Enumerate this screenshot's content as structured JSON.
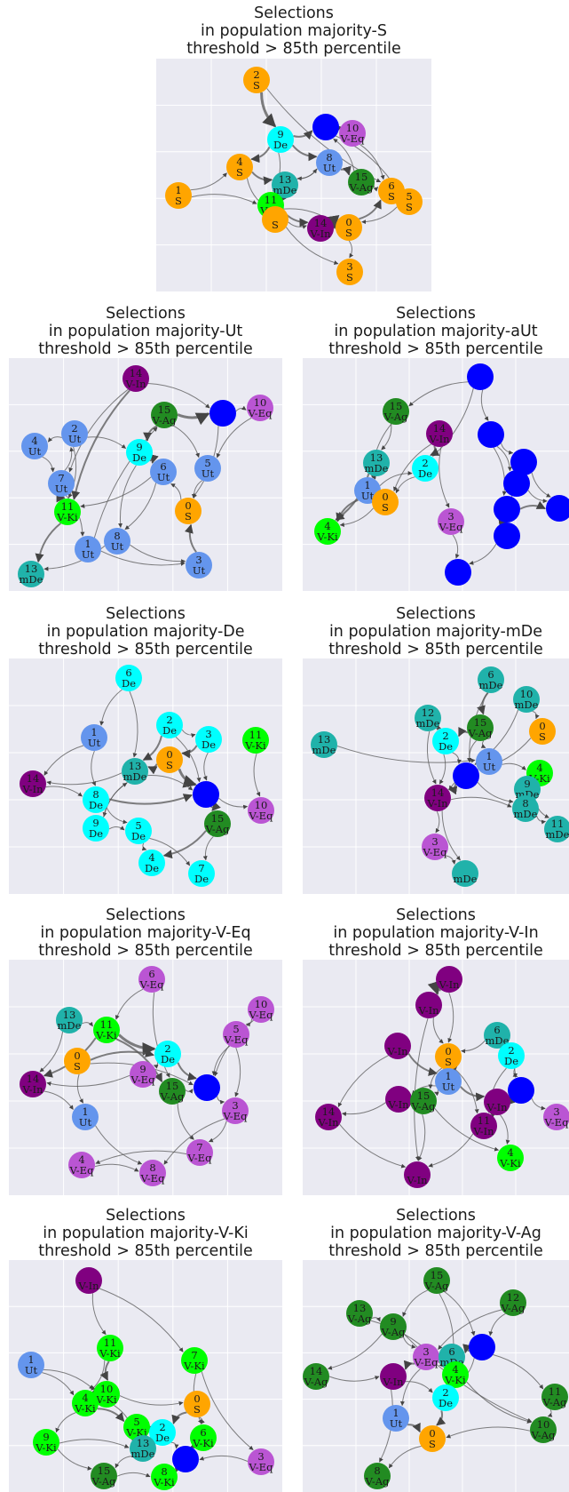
{
  "colors": {
    "S": "#ffa500",
    "Ut": "#6495ed",
    "aUt": "#0000ff",
    "De": "#00ffff",
    "mDe": "#20b2aa",
    "V-Eq": "#ba55d3",
    "V-In": "#800080",
    "V-Ki": "#00ff00",
    "V-Ag": "#228b22",
    "panel_bg": "#eaeaf2",
    "grid": "#ffffff",
    "edge": "#555555"
  },
  "panels": [
    {
      "title": [
        "Selections",
        "in population majority-S",
        "threshold > 85th percentile"
      ],
      "nodes": [
        {
          "id": "2",
          "type": "S",
          "label": "S"
        },
        {
          "id": "",
          "type": "aUt",
          "label": ""
        },
        {
          "id": "10",
          "type": "V-Eq",
          "label": "V-Eq"
        },
        {
          "id": "9",
          "type": "De",
          "label": "De"
        },
        {
          "id": "8",
          "type": "Ut",
          "label": "Ut"
        },
        {
          "id": "4",
          "type": "S",
          "label": "S"
        },
        {
          "id": "13",
          "type": "mDe",
          "label": "mDe"
        },
        {
          "id": "15",
          "type": "V-Ag",
          "label": "V-Ag"
        },
        {
          "id": "6",
          "type": "S",
          "label": "S"
        },
        {
          "id": "5",
          "type": "S",
          "label": "S"
        },
        {
          "id": "1",
          "type": "S",
          "label": "S"
        },
        {
          "id": "11",
          "type": "V-Ki",
          "label": "V-Ki"
        },
        {
          "id": "",
          "type": "S",
          "label": "S"
        },
        {
          "id": "14",
          "type": "V-In",
          "label": "V-In"
        },
        {
          "id": "0",
          "type": "S",
          "label": "S"
        },
        {
          "id": "3",
          "type": "S",
          "label": "S"
        }
      ]
    },
    {
      "title": [
        "Selections",
        "in population majority-Ut",
        "threshold > 85th percentile"
      ],
      "nodes": [
        {
          "id": "14",
          "type": "V-In",
          "label": "V-In"
        },
        {
          "id": "15",
          "type": "V-Ag",
          "label": "V-Ag"
        },
        {
          "id": "",
          "type": "aUt",
          "label": ""
        },
        {
          "id": "10",
          "type": "V-Eq",
          "label": "V-Eq"
        },
        {
          "id": "2",
          "type": "Ut",
          "label": "Ut"
        },
        {
          "id": "4",
          "type": "Ut",
          "label": "Ut"
        },
        {
          "id": "9",
          "type": "De",
          "label": "De"
        },
        {
          "id": "7",
          "type": "Ut",
          "label": "Ut"
        },
        {
          "id": "6",
          "type": "Ut",
          "label": "Ut"
        },
        {
          "id": "5",
          "type": "Ut",
          "label": "Ut"
        },
        {
          "id": "11",
          "type": "V-Ki",
          "label": "V-Ki"
        },
        {
          "id": "0",
          "type": "S",
          "label": "S"
        },
        {
          "id": "8",
          "type": "Ut",
          "label": "Ut"
        },
        {
          "id": "1",
          "type": "Ut",
          "label": "Ut"
        },
        {
          "id": "3",
          "type": "Ut",
          "label": "Ut"
        },
        {
          "id": "13",
          "type": "mDe",
          "label": "mDe"
        }
      ]
    },
    {
      "title": [
        "Selections",
        "in population majority-aUt",
        "threshold > 85th percentile"
      ],
      "nodes": [
        {
          "id": "",
          "type": "aUt",
          "label": ""
        },
        {
          "id": "15",
          "type": "V-Ag",
          "label": "V-Ag"
        },
        {
          "id": "14",
          "type": "V-In",
          "label": "V-In"
        },
        {
          "id": "",
          "type": "aUt",
          "label": ""
        },
        {
          "id": "13",
          "type": "mDe",
          "label": "mDe"
        },
        {
          "id": "2",
          "type": "De",
          "label": "De"
        },
        {
          "id": "",
          "type": "aUt",
          "label": ""
        },
        {
          "id": "",
          "type": "aUt",
          "label": ""
        },
        {
          "id": "1",
          "type": "Ut",
          "label": "Ut"
        },
        {
          "id": "0",
          "type": "S",
          "label": "S"
        },
        {
          "id": "",
          "type": "aUt",
          "label": ""
        },
        {
          "id": "3",
          "type": "V-Eq",
          "label": "V-Eq"
        },
        {
          "id": "",
          "type": "aUt",
          "label": ""
        },
        {
          "id": "4",
          "type": "V-Ki",
          "label": "V-Ki"
        },
        {
          "id": "",
          "type": "aUt",
          "label": ""
        },
        {
          "id": "",
          "type": "aUt",
          "label": ""
        }
      ]
    },
    {
      "title": [
        "Selections",
        "in population majority-De",
        "threshold > 85th percentile"
      ],
      "nodes": [
        {
          "id": "6",
          "type": "De",
          "label": "De"
        },
        {
          "id": "2",
          "type": "De",
          "label": "De"
        },
        {
          "id": "1",
          "type": "Ut",
          "label": "Ut"
        },
        {
          "id": "3",
          "type": "De",
          "label": "De"
        },
        {
          "id": "11",
          "type": "V-Ki",
          "label": "V-Ki"
        },
        {
          "id": "0",
          "type": "S",
          "label": "S"
        },
        {
          "id": "13",
          "type": "mDe",
          "label": "mDe"
        },
        {
          "id": "14",
          "type": "V-In",
          "label": "V-In"
        },
        {
          "id": "8",
          "type": "De",
          "label": "De"
        },
        {
          "id": "",
          "type": "aUt",
          "label": ""
        },
        {
          "id": "10",
          "type": "V-Eq",
          "label": "V-Eq"
        },
        {
          "id": "9",
          "type": "De",
          "label": "De"
        },
        {
          "id": "5",
          "type": "De",
          "label": "De"
        },
        {
          "id": "15",
          "type": "V-Ag",
          "label": "V-Ag"
        },
        {
          "id": "4",
          "type": "De",
          "label": "De"
        },
        {
          "id": "7",
          "type": "De",
          "label": "De"
        }
      ]
    },
    {
      "title": [
        "Selections",
        "in population majority-mDe",
        "threshold > 85th percentile"
      ],
      "nodes": [
        {
          "id": "6",
          "type": "mDe",
          "label": "mDe"
        },
        {
          "id": "10",
          "type": "mDe",
          "label": "mDe"
        },
        {
          "id": "12",
          "type": "mDe",
          "label": "mDe"
        },
        {
          "id": "15",
          "type": "V-Ag",
          "label": "V-Ag"
        },
        {
          "id": "0",
          "type": "S",
          "label": "S"
        },
        {
          "id": "13",
          "type": "mDe",
          "label": "mDe"
        },
        {
          "id": "2",
          "type": "De",
          "label": "De"
        },
        {
          "id": "1",
          "type": "Ut",
          "label": "Ut"
        },
        {
          "id": "4",
          "type": "V-Ki",
          "label": "V-Ki"
        },
        {
          "id": "",
          "type": "aUt",
          "label": ""
        },
        {
          "id": "9",
          "type": "mDe",
          "label": "mDe"
        },
        {
          "id": "14",
          "type": "V-In",
          "label": "V-In"
        },
        {
          "id": "8",
          "type": "mDe",
          "label": "mDe"
        },
        {
          "id": "11",
          "type": "mDe",
          "label": "mDe"
        },
        {
          "id": "3",
          "type": "V-Eq",
          "label": "V-Eq"
        },
        {
          "id": "",
          "type": "mDe",
          "label": "mDe"
        }
      ]
    },
    {
      "title": [
        "Selections",
        "in population majority-V-Eq",
        "threshold > 85th percentile"
      ],
      "nodes": [
        {
          "id": "6",
          "type": "V-Eq",
          "label": "V-Eq"
        },
        {
          "id": "10",
          "type": "V-Eq",
          "label": "V-Eq"
        },
        {
          "id": "13",
          "type": "mDe",
          "label": "mDe"
        },
        {
          "id": "11",
          "type": "V-Ki",
          "label": "V-Ki"
        },
        {
          "id": "5",
          "type": "V-Eq",
          "label": "V-Eq"
        },
        {
          "id": "0",
          "type": "S",
          "label": "S"
        },
        {
          "id": "2",
          "type": "De",
          "label": "De"
        },
        {
          "id": "9",
          "type": "V-Eq",
          "label": "V-Eq"
        },
        {
          "id": "14",
          "type": "V-In",
          "label": "V-In"
        },
        {
          "id": "15",
          "type": "V-Ag",
          "label": "V-Ag"
        },
        {
          "id": "",
          "type": "aUt",
          "label": ""
        },
        {
          "id": "1",
          "type": "Ut",
          "label": "Ut"
        },
        {
          "id": "3",
          "type": "V-Eq",
          "label": "V-Eq"
        },
        {
          "id": "7",
          "type": "V-Eq",
          "label": "V-Eq"
        },
        {
          "id": "4",
          "type": "V-Eq",
          "label": "V-Eq"
        },
        {
          "id": "8",
          "type": "V-Eq",
          "label": "V-Eq"
        }
      ]
    },
    {
      "title": [
        "Selections",
        "in population majority-V-In",
        "threshold > 85th percentile"
      ],
      "nodes": [
        {
          "id": "",
          "type": "V-In",
          "label": "V-In"
        },
        {
          "id": "",
          "type": "V-In",
          "label": "V-In"
        },
        {
          "id": "6",
          "type": "mDe",
          "label": "mDe"
        },
        {
          "id": "",
          "type": "V-In",
          "label": "V-In"
        },
        {
          "id": "0",
          "type": "S",
          "label": "S"
        },
        {
          "id": "2",
          "type": "De",
          "label": "De"
        },
        {
          "id": "1",
          "type": "Ut",
          "label": "Ut"
        },
        {
          "id": "",
          "type": "aUt",
          "label": ""
        },
        {
          "id": "",
          "type": "V-In",
          "label": "V-In"
        },
        {
          "id": "15",
          "type": "V-Ag",
          "label": "V-Ag"
        },
        {
          "id": "",
          "type": "V-In",
          "label": "V-In"
        },
        {
          "id": "3",
          "type": "V-Eq",
          "label": "V-Eq"
        },
        {
          "id": "14",
          "type": "V-In",
          "label": "V-In"
        },
        {
          "id": "11",
          "type": "V-In",
          "label": "V-In"
        },
        {
          "id": "4",
          "type": "V-Ki",
          "label": "V-Ki"
        },
        {
          "id": "",
          "type": "V-In",
          "label": "V-In"
        }
      ]
    },
    {
      "title": [
        "Selections",
        "in population majority-V-Ki",
        "threshold > 85th percentile"
      ],
      "nodes": [
        {
          "id": "",
          "type": "V-In",
          "label": "V-In"
        },
        {
          "id": "11",
          "type": "V-Ki",
          "label": "V-Ki"
        },
        {
          "id": "1",
          "type": "Ut",
          "label": "Ut"
        },
        {
          "id": "7",
          "type": "V-Ki",
          "label": "V-Ki"
        },
        {
          "id": "10",
          "type": "V-Ki",
          "label": "V-Ki"
        },
        {
          "id": "4",
          "type": "V-Ki",
          "label": "V-Ki"
        },
        {
          "id": "0",
          "type": "S",
          "label": "S"
        },
        {
          "id": "5",
          "type": "V-Ki",
          "label": "V-Ki"
        },
        {
          "id": "2",
          "type": "De",
          "label": "De"
        },
        {
          "id": "9",
          "type": "V-Ki",
          "label": "V-Ki"
        },
        {
          "id": "6",
          "type": "V-Ki",
          "label": "V-Ki"
        },
        {
          "id": "13",
          "type": "mDe",
          "label": "mDe"
        },
        {
          "id": "",
          "type": "aUt",
          "label": ""
        },
        {
          "id": "3",
          "type": "V-Eq",
          "label": "V-Eq"
        },
        {
          "id": "15",
          "type": "V-Ag",
          "label": "V-Ag"
        },
        {
          "id": "8",
          "type": "V-Ki",
          "label": "V-Ki"
        }
      ]
    },
    {
      "title": [
        "Selections",
        "in population majority-V-Ag",
        "threshold > 85th percentile"
      ],
      "nodes": [
        {
          "id": "15",
          "type": "V-Ag",
          "label": "V-Ag"
        },
        {
          "id": "12",
          "type": "V-Ag",
          "label": "V-Ag"
        },
        {
          "id": "13",
          "type": "V-Ag",
          "label": "V-Ag"
        },
        {
          "id": "9",
          "type": "V-Ag",
          "label": "V-Ag"
        },
        {
          "id": "",
          "type": "aUt",
          "label": ""
        },
        {
          "id": "3",
          "type": "V-Eq",
          "label": "V-Eq"
        },
        {
          "id": "6",
          "type": "mDe",
          "label": "mDe"
        },
        {
          "id": "14",
          "type": "V-Ag",
          "label": "V-Ag"
        },
        {
          "id": "",
          "type": "V-In",
          "label": "V-In"
        },
        {
          "id": "4",
          "type": "V-Ki",
          "label": "V-Ki"
        },
        {
          "id": "11",
          "type": "V-Ag",
          "label": "V-Ag"
        },
        {
          "id": "2",
          "type": "De",
          "label": "De"
        },
        {
          "id": "1",
          "type": "Ut",
          "label": "Ut"
        },
        {
          "id": "10",
          "type": "V-Ag",
          "label": "V-Ag"
        },
        {
          "id": "0",
          "type": "S",
          "label": "S"
        },
        {
          "id": "8",
          "type": "V-Ag",
          "label": "V-Ag"
        }
      ]
    }
  ]
}
